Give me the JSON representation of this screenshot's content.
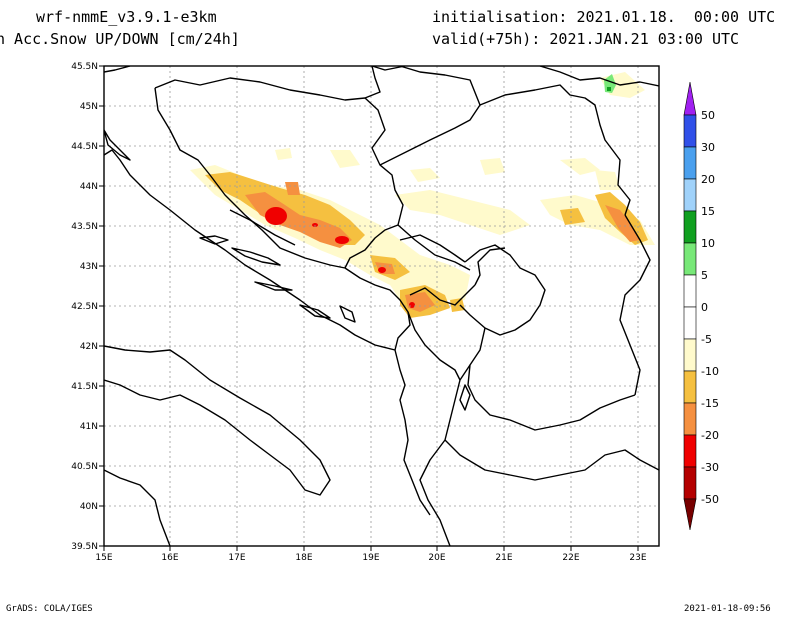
{
  "header": {
    "line1": "wrf-nmmE_v3.9.1-e3km",
    "line2": "n Acc.Snow UP/DOWN [cm/24h]",
    "init": "initialisation: 2021.01.18.  00:00 UTC",
    "valid": "valid(+75h): 2021.JAN.21 03:00 UTC"
  },
  "footer": {
    "left": "GrADS: COLA/IGES",
    "right": "2021-01-18-09:56"
  },
  "map": {
    "lat_labels": [
      "45.5N",
      "45N",
      "44.5N",
      "44N",
      "43.5N",
      "43N",
      "42.5N",
      "42N",
      "41.5N",
      "41N",
      "40.5N",
      "40N",
      "39.5N"
    ],
    "lon_labels": [
      "15E",
      "16E",
      "17E",
      "18E",
      "19E",
      "20E",
      "21E",
      "22E",
      "23E"
    ],
    "lat_range": [
      39.5,
      45.5
    ],
    "lon_range": [
      15,
      23.25
    ],
    "grid": true
  },
  "colorbar": {
    "labels": [
      "50",
      "30",
      "20",
      "15",
      "10",
      "5",
      "0",
      "-5",
      "-10",
      "-15",
      "-20",
      "-30",
      "-50"
    ],
    "colors": {
      "purple": "#a020f0",
      "blue": "#3050e8",
      "mid_blue": "#4aa0ee",
      "light_blue": "#a0d2fa",
      "dark_green": "#10a020",
      "light_green": "#78e878",
      "white": "#ffffff",
      "pale_yellow": "#fffacc",
      "yellow_orange": "#f5c040",
      "orange": "#f59040",
      "red": "#f00000",
      "dark_red": "#b40000",
      "maroon": "#780000"
    }
  }
}
